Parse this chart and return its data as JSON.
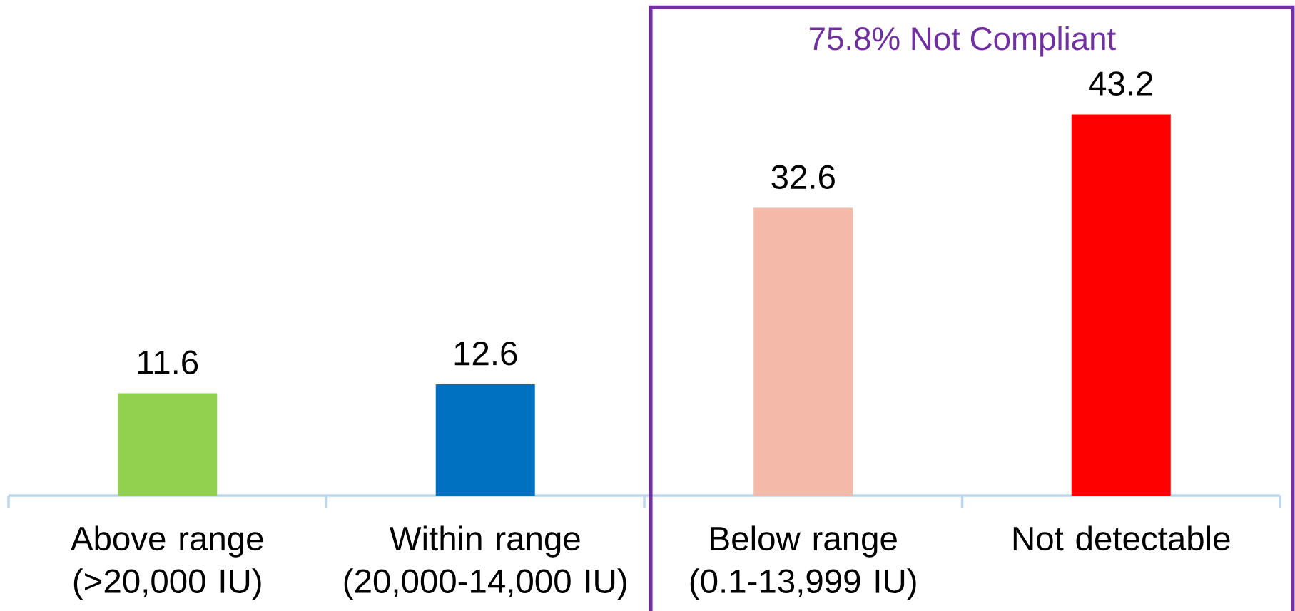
{
  "chart_data": {
    "type": "bar",
    "categories": [
      "Above range (>20,000 IU)",
      "Within range (20,000-14,000 IU)",
      "Below range (0.1-13,999 IU)",
      "Not detectable"
    ],
    "values": [
      11.6,
      12.6,
      32.6,
      43.2
    ],
    "colors": [
      "#92d050",
      "#0070c0",
      "#f4b9a8",
      "#ff0000"
    ],
    "data_labels": true,
    "annotations": [
      "75.8% Not Compliant"
    ]
  }
}
